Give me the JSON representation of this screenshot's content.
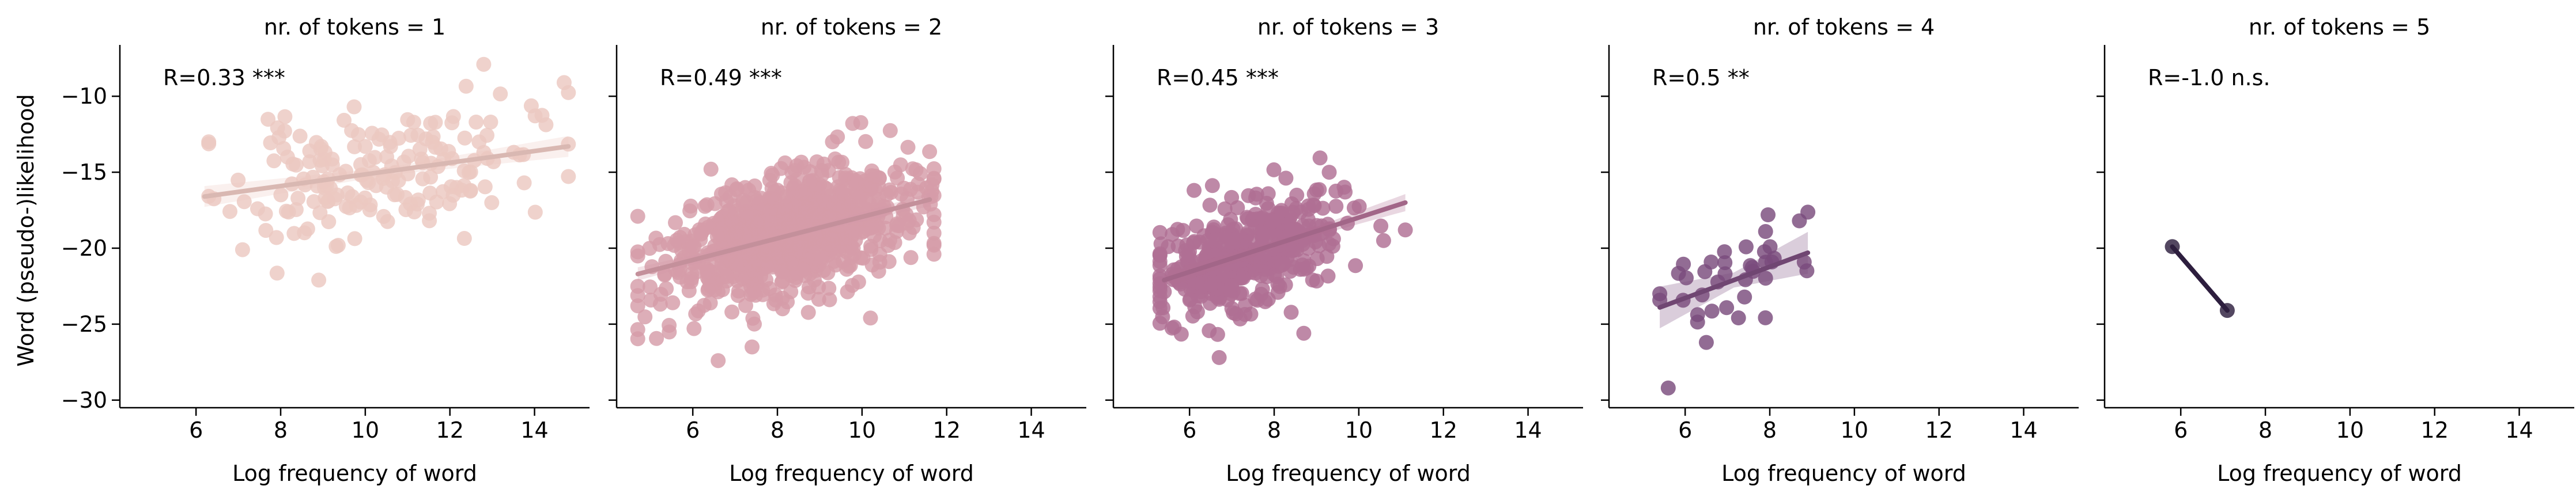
{
  "chart_data": {
    "type": "scatter",
    "sharey": true,
    "ylabel": "Word (pseudo-)likelihood",
    "ylim": [
      -30.5,
      -7
    ],
    "yticks": [
      -10,
      -15,
      -20,
      -25,
      -30
    ],
    "xlim": [
      4.2,
      15.3
    ],
    "xticks": [
      6,
      8,
      10,
      12,
      14
    ],
    "grid": false,
    "panels": [
      {
        "title": "nr. of tokens = 1",
        "xlabel": "Log frequency of word",
        "annotation": "R=0.33 ***",
        "color": "#ecc8c1",
        "regression": {
          "x": [
            6.2,
            14.8
          ],
          "y": [
            -16.6,
            -13.3
          ]
        },
        "points": {
          "seed": 11,
          "n": 180,
          "x_mean": 10.3,
          "x_sd": 1.7,
          "x_min": 6.3,
          "x_max": 14.8,
          "y_intercept": -16.6,
          "y_slope": 0.38,
          "y_x0": 6.2,
          "y_sd": 2.0
        },
        "extra_points": [
          [
            12.8,
            -7.9
          ],
          [
            14.7,
            -9.1
          ],
          [
            8.9,
            -22.1
          ],
          [
            7.1,
            -20.1
          ],
          [
            6.3,
            -13.0
          ],
          [
            7.9,
            -19.3
          ]
        ]
      },
      {
        "title": "nr. of tokens = 2",
        "xlabel": "Log frequency of word",
        "annotation": "R=0.49 ***",
        "color": "#d59ca8",
        "regression": {
          "x": [
            4.7,
            11.6
          ],
          "y": [
            -21.7,
            -16.8
          ]
        },
        "points": {
          "seed": 23,
          "n": 900,
          "x_mean": 8.2,
          "x_sd": 1.4,
          "x_min": 4.7,
          "x_max": 11.7,
          "y_intercept": -21.7,
          "y_slope": 0.71,
          "y_x0": 4.7,
          "y_sd": 1.9
        },
        "extra_points": [
          [
            4.7,
            -17.9
          ],
          [
            7.4,
            -26.5
          ],
          [
            9.3,
            -13.0
          ],
          [
            6.6,
            -27.4
          ],
          [
            10.2,
            -24.6
          ]
        ]
      },
      {
        "title": "nr. of tokens = 3",
        "xlabel": "Log frequency of word",
        "annotation": "R=0.45 ***",
        "color": "#b06f94",
        "regression": {
          "x": [
            5.4,
            11.1
          ],
          "y": [
            -22.1,
            -17.0
          ]
        },
        "points": {
          "seed": 37,
          "n": 420,
          "x_mean": 7.4,
          "x_sd": 1.1,
          "x_min": 5.3,
          "x_max": 11.1,
          "y_intercept": -22.1,
          "y_slope": 0.89,
          "y_x0": 5.4,
          "y_sd": 1.7
        },
        "extra_points": [
          [
            6.7,
            -27.2
          ],
          [
            9.3,
            -15.0
          ],
          [
            11.1,
            -18.8
          ],
          [
            5.3,
            -23.2
          ],
          [
            8.7,
            -25.6
          ]
        ]
      },
      {
        "title": "nr. of tokens = 4",
        "xlabel": "Log frequency of word",
        "annotation": "R=0.5 **",
        "color": "#7a4c7c",
        "regression": {
          "x": [
            5.4,
            8.9
          ],
          "y": [
            -23.9,
            -20.3
          ]
        },
        "points": {
          "seed": 53,
          "n": 34,
          "x_mean": 7.1,
          "x_sd": 0.85,
          "x_min": 5.4,
          "x_max": 8.9,
          "y_intercept": -23.9,
          "y_slope": 1.03,
          "y_x0": 5.4,
          "y_sd": 1.5
        },
        "extra_points": [
          [
            5.6,
            -29.2
          ],
          [
            8.7,
            -18.2
          ],
          [
            5.4,
            -23.0
          ],
          [
            6.5,
            -26.2
          ],
          [
            7.9,
            -18.9
          ]
        ]
      },
      {
        "title": "nr. of tokens = 5",
        "xlabel": "Log frequency of word",
        "annotation": "R=-1.0 n.s.",
        "color": "#2d1e3e",
        "regression": {
          "x": [
            5.8,
            7.1
          ],
          "y": [
            -19.9,
            -24.1
          ]
        },
        "points": {
          "seed": 0,
          "n": 0
        },
        "extra_points": [
          [
            5.8,
            -19.9
          ],
          [
            7.1,
            -24.1
          ]
        ]
      }
    ]
  }
}
